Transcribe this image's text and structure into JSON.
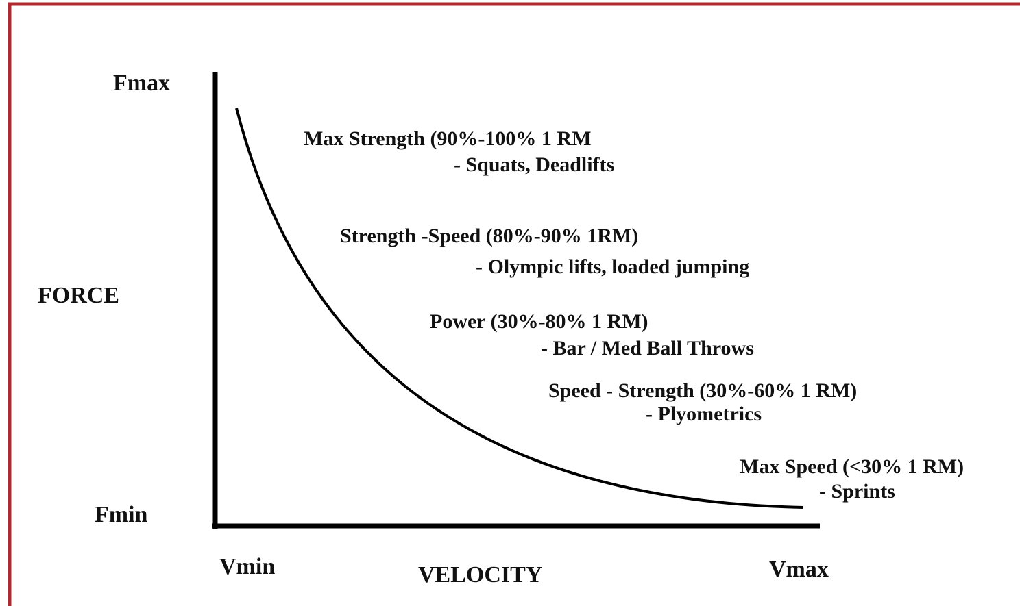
{
  "axes": {
    "y_max": "Fmax",
    "y_label": "FORCE",
    "y_min": "Fmin",
    "x_min": "Vmin",
    "x_label": "VELOCITY",
    "x_max": "Vmax"
  },
  "zones": [
    {
      "title": "Max Strength (90%-100% 1 RM",
      "examples": "- Squats, Deadlifts"
    },
    {
      "title": "Strength -Speed (80%-90% 1RM)",
      "examples": "- Olympic lifts, loaded jumping"
    },
    {
      "title": "Power (30%-80% 1 RM)",
      "examples": "- Bar / Med Ball Throws"
    },
    {
      "title": "Speed - Strength (30%-60% 1 RM)",
      "examples": "- Plyometrics"
    },
    {
      "title": "Max Speed (<30% 1 RM)",
      "examples": "- Sprints"
    }
  ]
}
